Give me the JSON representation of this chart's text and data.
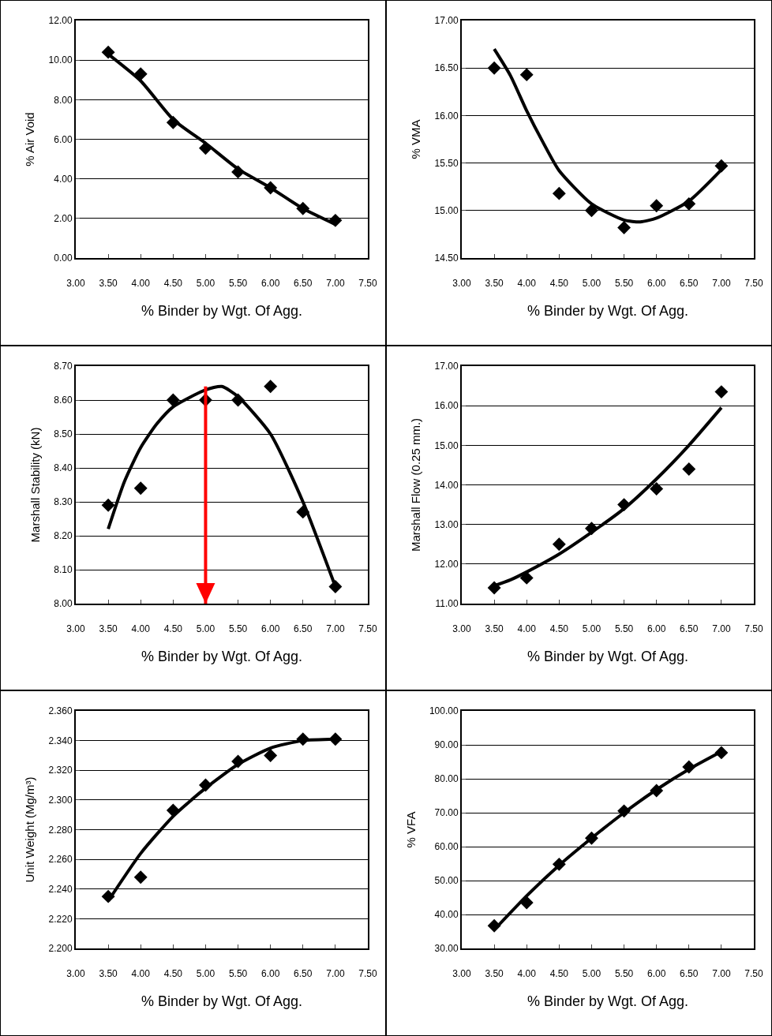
{
  "chart_data": [
    {
      "type": "scatter",
      "xlabel": "% Binder by Wgt. Of Agg.",
      "ylabel": "% Air Void",
      "grid": "y",
      "legend": false,
      "x": [
        3.5,
        4,
        4.5,
        5,
        5.5,
        6,
        6.5,
        7
      ],
      "series": [
        {
          "type": "scatter",
          "marker": "diamond",
          "color": "#000000",
          "values": [
            10.4,
            9.3,
            6.85,
            5.55,
            4.35,
            3.55,
            2.5,
            1.9
          ]
        },
        {
          "type": "line",
          "color": "#000000",
          "x": [
            3.5,
            4,
            4.5,
            5,
            5.5,
            6,
            6.5,
            7
          ],
          "values": [
            10.3,
            8.95,
            7.0,
            5.8,
            4.5,
            3.55,
            2.5,
            1.7
          ]
        }
      ],
      "xlim": [
        3,
        7.5
      ],
      "xticks": [
        {
          "value": 3,
          "label": "3.00"
        },
        {
          "value": 3.5,
          "label": "3.50"
        },
        {
          "value": 4,
          "label": "4.00"
        },
        {
          "value": 4.5,
          "label": "4.50"
        },
        {
          "value": 5,
          "label": "5.00"
        },
        {
          "value": 5.5,
          "label": "5.50"
        },
        {
          "value": 6,
          "label": "6.00"
        },
        {
          "value": 6.5,
          "label": "6.50"
        },
        {
          "value": 7,
          "label": "7.00"
        },
        {
          "value": 7.5,
          "label": "7.50"
        }
      ],
      "ylim": [
        0,
        12
      ],
      "yticks": [
        {
          "value": 0,
          "label": "0.00"
        },
        {
          "value": 2,
          "label": "2.00"
        },
        {
          "value": 4,
          "label": "4.00"
        },
        {
          "value": 6,
          "label": "6.00"
        },
        {
          "value": 8,
          "label": "8.00"
        },
        {
          "value": 10,
          "label": "10.00"
        },
        {
          "value": 12,
          "label": "12.00"
        }
      ]
    },
    {
      "type": "scatter",
      "xlabel": "% Binder by Wgt. Of Agg.",
      "ylabel": "% VMA",
      "grid": "y",
      "legend": false,
      "x": [
        3.5,
        4,
        4.5,
        5,
        5.5,
        6,
        6.5,
        7
      ],
      "series": [
        {
          "type": "scatter",
          "marker": "diamond",
          "color": "#000000",
          "values": [
            16.5,
            16.43,
            15.18,
            15.0,
            14.82,
            15.05,
            15.07,
            15.47
          ]
        },
        {
          "type": "line",
          "color": "#000000",
          "x": [
            3.5,
            3.75,
            4,
            4.25,
            4.5,
            5,
            5.5,
            5.75,
            6,
            6.5,
            7
          ],
          "values": [
            16.7,
            16.42,
            16.05,
            15.72,
            15.42,
            15.07,
            14.9,
            14.88,
            14.92,
            15.1,
            15.43
          ]
        }
      ],
      "xlim": [
        3,
        7.5
      ],
      "xticks": [
        {
          "value": 3,
          "label": "3.00"
        },
        {
          "value": 3.5,
          "label": "3.50"
        },
        {
          "value": 4,
          "label": "4.00"
        },
        {
          "value": 4.5,
          "label": "4.50"
        },
        {
          "value": 5,
          "label": "5.00"
        },
        {
          "value": 5.5,
          "label": "5.50"
        },
        {
          "value": 6,
          "label": "6.00"
        },
        {
          "value": 6.5,
          "label": "6.50"
        },
        {
          "value": 7,
          "label": "7.00"
        },
        {
          "value": 7.5,
          "label": "7.50"
        }
      ],
      "ylim": [
        14.5,
        17
      ],
      "yticks": [
        {
          "value": 14.5,
          "label": "14.50"
        },
        {
          "value": 15,
          "label": "15.00"
        },
        {
          "value": 15.5,
          "label": "15.50"
        },
        {
          "value": 16,
          "label": "16.00"
        },
        {
          "value": 16.5,
          "label": "16.50"
        },
        {
          "value": 17,
          "label": "17.00"
        }
      ]
    },
    {
      "type": "scatter",
      "xlabel": "% Binder by Wgt. Of Agg.",
      "ylabel": "Marshall Stability (kN)",
      "grid": "y",
      "legend": false,
      "x": [
        3.5,
        4,
        4.5,
        5,
        5.5,
        6,
        6.5,
        7
      ],
      "series": [
        {
          "type": "scatter",
          "marker": "diamond",
          "color": "#000000",
          "values": [
            8.29,
            8.34,
            8.6,
            8.6,
            8.6,
            8.64,
            8.27,
            8.05
          ]
        },
        {
          "type": "line",
          "color": "#000000",
          "x": [
            3.5,
            3.75,
            4,
            4.25,
            4.5,
            5,
            5.25,
            5.5,
            6,
            6.5,
            7
          ],
          "values": [
            8.22,
            8.36,
            8.46,
            8.53,
            8.58,
            8.63,
            8.64,
            8.61,
            8.5,
            8.3,
            8.05
          ]
        }
      ],
      "ref_lines": [
        {
          "axis": "x",
          "value": 5,
          "color": "#ff0000"
        }
      ],
      "xlim": [
        3,
        7.5
      ],
      "xticks": [
        {
          "value": 3,
          "label": "3.00"
        },
        {
          "value": 3.5,
          "label": "3.50"
        },
        {
          "value": 4,
          "label": "4.00"
        },
        {
          "value": 4.5,
          "label": "4.50"
        },
        {
          "value": 5,
          "label": "5.00"
        },
        {
          "value": 5.5,
          "label": "5.50"
        },
        {
          "value": 6,
          "label": "6.00"
        },
        {
          "value": 6.5,
          "label": "6.50"
        },
        {
          "value": 7,
          "label": "7.00"
        },
        {
          "value": 7.5,
          "label": "7.50"
        }
      ],
      "ylim": [
        8,
        8.7
      ],
      "yticks": [
        {
          "value": 8,
          "label": "8.00"
        },
        {
          "value": 8.1,
          "label": "8.10"
        },
        {
          "value": 8.2,
          "label": "8.20"
        },
        {
          "value": 8.3,
          "label": "8.30"
        },
        {
          "value": 8.4,
          "label": "8.40"
        },
        {
          "value": 8.5,
          "label": "8.50"
        },
        {
          "value": 8.6,
          "label": "8.60"
        },
        {
          "value": 8.7,
          "label": "8.70"
        }
      ]
    },
    {
      "type": "scatter",
      "xlabel": "% Binder by Wgt. Of Agg.",
      "ylabel": "Marshall Flow (0.25 mm.)",
      "grid": "y",
      "legend": false,
      "x": [
        3.5,
        4,
        4.5,
        5,
        5.5,
        6,
        6.5,
        7
      ],
      "series": [
        {
          "type": "scatter",
          "marker": "diamond",
          "color": "#000000",
          "values": [
            11.4,
            11.65,
            12.5,
            12.9,
            13.5,
            13.9,
            14.4,
            16.35
          ]
        },
        {
          "type": "line",
          "color": "#000000",
          "x": [
            3.5,
            3.75,
            4,
            4.5,
            5,
            5.5,
            6,
            6.5,
            7
          ],
          "values": [
            11.45,
            11.6,
            11.8,
            12.25,
            12.8,
            13.4,
            14.15,
            15.0,
            15.95
          ]
        }
      ],
      "xlim": [
        3,
        7.5
      ],
      "xticks": [
        {
          "value": 3,
          "label": "3.00"
        },
        {
          "value": 3.5,
          "label": "3.50"
        },
        {
          "value": 4,
          "label": "4.00"
        },
        {
          "value": 4.5,
          "label": "4.50"
        },
        {
          "value": 5,
          "label": "5.00"
        },
        {
          "value": 5.5,
          "label": "5.50"
        },
        {
          "value": 6,
          "label": "6.00"
        },
        {
          "value": 6.5,
          "label": "6.50"
        },
        {
          "value": 7,
          "label": "7.00"
        },
        {
          "value": 7.5,
          "label": "7.50"
        }
      ],
      "ylim": [
        11,
        17
      ],
      "yticks": [
        {
          "value": 11,
          "label": "11.00"
        },
        {
          "value": 12,
          "label": "12.00"
        },
        {
          "value": 13,
          "label": "13.00"
        },
        {
          "value": 14,
          "label": "14.00"
        },
        {
          "value": 15,
          "label": "15.00"
        },
        {
          "value": 16,
          "label": "16.00"
        },
        {
          "value": 17,
          "label": "17.00"
        }
      ]
    },
    {
      "type": "scatter",
      "xlabel": "% Binder by Wgt. Of Agg.",
      "ylabel": "Unit Weight (Mg/m³)",
      "grid": "y",
      "legend": false,
      "x": [
        3.5,
        4,
        4.5,
        5,
        5.5,
        6,
        6.5,
        7
      ],
      "series": [
        {
          "type": "scatter",
          "marker": "diamond",
          "color": "#000000",
          "values": [
            2.235,
            2.248,
            2.293,
            2.31,
            2.326,
            2.33,
            2.341,
            2.341
          ]
        },
        {
          "type": "line",
          "color": "#000000",
          "x": [
            3.5,
            4,
            4.5,
            5,
            5.5,
            6,
            6.5,
            7
          ],
          "values": [
            2.232,
            2.264,
            2.289,
            2.308,
            2.324,
            2.335,
            2.34,
            2.341
          ]
        }
      ],
      "xlim": [
        3,
        7.5
      ],
      "xticks": [
        {
          "value": 3,
          "label": "3.00"
        },
        {
          "value": 3.5,
          "label": "3.50"
        },
        {
          "value": 4,
          "label": "4.00"
        },
        {
          "value": 4.5,
          "label": "4.50"
        },
        {
          "value": 5,
          "label": "5.00"
        },
        {
          "value": 5.5,
          "label": "5.50"
        },
        {
          "value": 6,
          "label": "6.00"
        },
        {
          "value": 6.5,
          "label": "6.50"
        },
        {
          "value": 7,
          "label": "7.00"
        },
        {
          "value": 7.5,
          "label": "7.50"
        }
      ],
      "ylim": [
        2.2,
        2.36
      ],
      "yticks": [
        {
          "value": 2.2,
          "label": "2.200"
        },
        {
          "value": 2.22,
          "label": "2.220"
        },
        {
          "value": 2.24,
          "label": "2.240"
        },
        {
          "value": 2.26,
          "label": "2.260"
        },
        {
          "value": 2.28,
          "label": "2.280"
        },
        {
          "value": 2.3,
          "label": "2.300"
        },
        {
          "value": 2.32,
          "label": "2.320"
        },
        {
          "value": 2.34,
          "label": "2.340"
        },
        {
          "value": 2.36,
          "label": "2.360"
        }
      ]
    },
    {
      "type": "scatter",
      "xlabel": "% Binder by Wgt. Of Agg.",
      "ylabel": "% VFA",
      "grid": "y",
      "legend": false,
      "x": [
        3.5,
        4,
        4.5,
        5,
        5.5,
        6,
        6.5,
        7
      ],
      "series": [
        {
          "type": "scatter",
          "marker": "diamond",
          "color": "#000000",
          "values": [
            36.7,
            43.5,
            54.8,
            62.5,
            70.5,
            76.5,
            83.5,
            87.7
          ]
        },
        {
          "type": "line",
          "color": "#000000",
          "x": [
            3.5,
            4,
            4.5,
            5,
            5.5,
            6,
            6.5,
            7
          ],
          "values": [
            35.5,
            45.5,
            54.5,
            62.5,
            70,
            76.8,
            82.8,
            88
          ]
        }
      ],
      "xlim": [
        3,
        7.5
      ],
      "xticks": [
        {
          "value": 3,
          "label": "3.00"
        },
        {
          "value": 3.5,
          "label": "3.50"
        },
        {
          "value": 4,
          "label": "4.00"
        },
        {
          "value": 4.5,
          "label": "4.50"
        },
        {
          "value": 5,
          "label": "5.00"
        },
        {
          "value": 5.5,
          "label": "5.50"
        },
        {
          "value": 6,
          "label": "6.00"
        },
        {
          "value": 6.5,
          "label": "6.50"
        },
        {
          "value": 7,
          "label": "7.00"
        },
        {
          "value": 7.5,
          "label": "7.50"
        }
      ],
      "ylim": [
        30,
        100
      ],
      "yticks": [
        {
          "value": 30,
          "label": "30.00"
        },
        {
          "value": 40,
          "label": "40.00"
        },
        {
          "value": 50,
          "label": "50.00"
        },
        {
          "value": 60,
          "label": "60.00"
        },
        {
          "value": 70,
          "label": "70.00"
        },
        {
          "value": 80,
          "label": "80.00"
        },
        {
          "value": 90,
          "label": "90.00"
        },
        {
          "value": 100,
          "label": "100.00"
        }
      ]
    }
  ]
}
